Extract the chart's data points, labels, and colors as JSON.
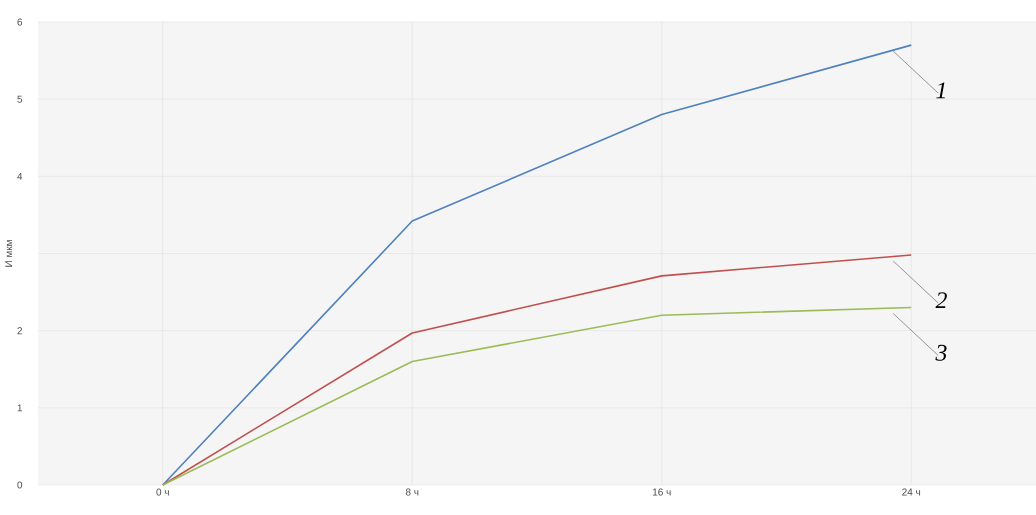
{
  "chart_data": {
    "type": "line",
    "ylabel": "И мкм",
    "categories": [
      "0 ч",
      "8 ч",
      "16 ч",
      "24 ч"
    ],
    "series": [
      {
        "name": "1",
        "color": "#4f81bd",
        "values": [
          0,
          3.42,
          4.8,
          5.7
        ]
      },
      {
        "name": "2",
        "color": "#c0504d",
        "values": [
          0,
          1.97,
          2.71,
          2.98
        ]
      },
      {
        "name": "3",
        "color": "#9bbb59",
        "values": [
          0,
          1.6,
          2.2,
          2.3
        ]
      }
    ],
    "ylim": [
      0,
      6
    ],
    "yticks": [
      0,
      1,
      2,
      {
        "value": 3,
        "label": null
      },
      4,
      5,
      6
    ],
    "grid": true,
    "marker": "none",
    "line_style": "solid"
  }
}
